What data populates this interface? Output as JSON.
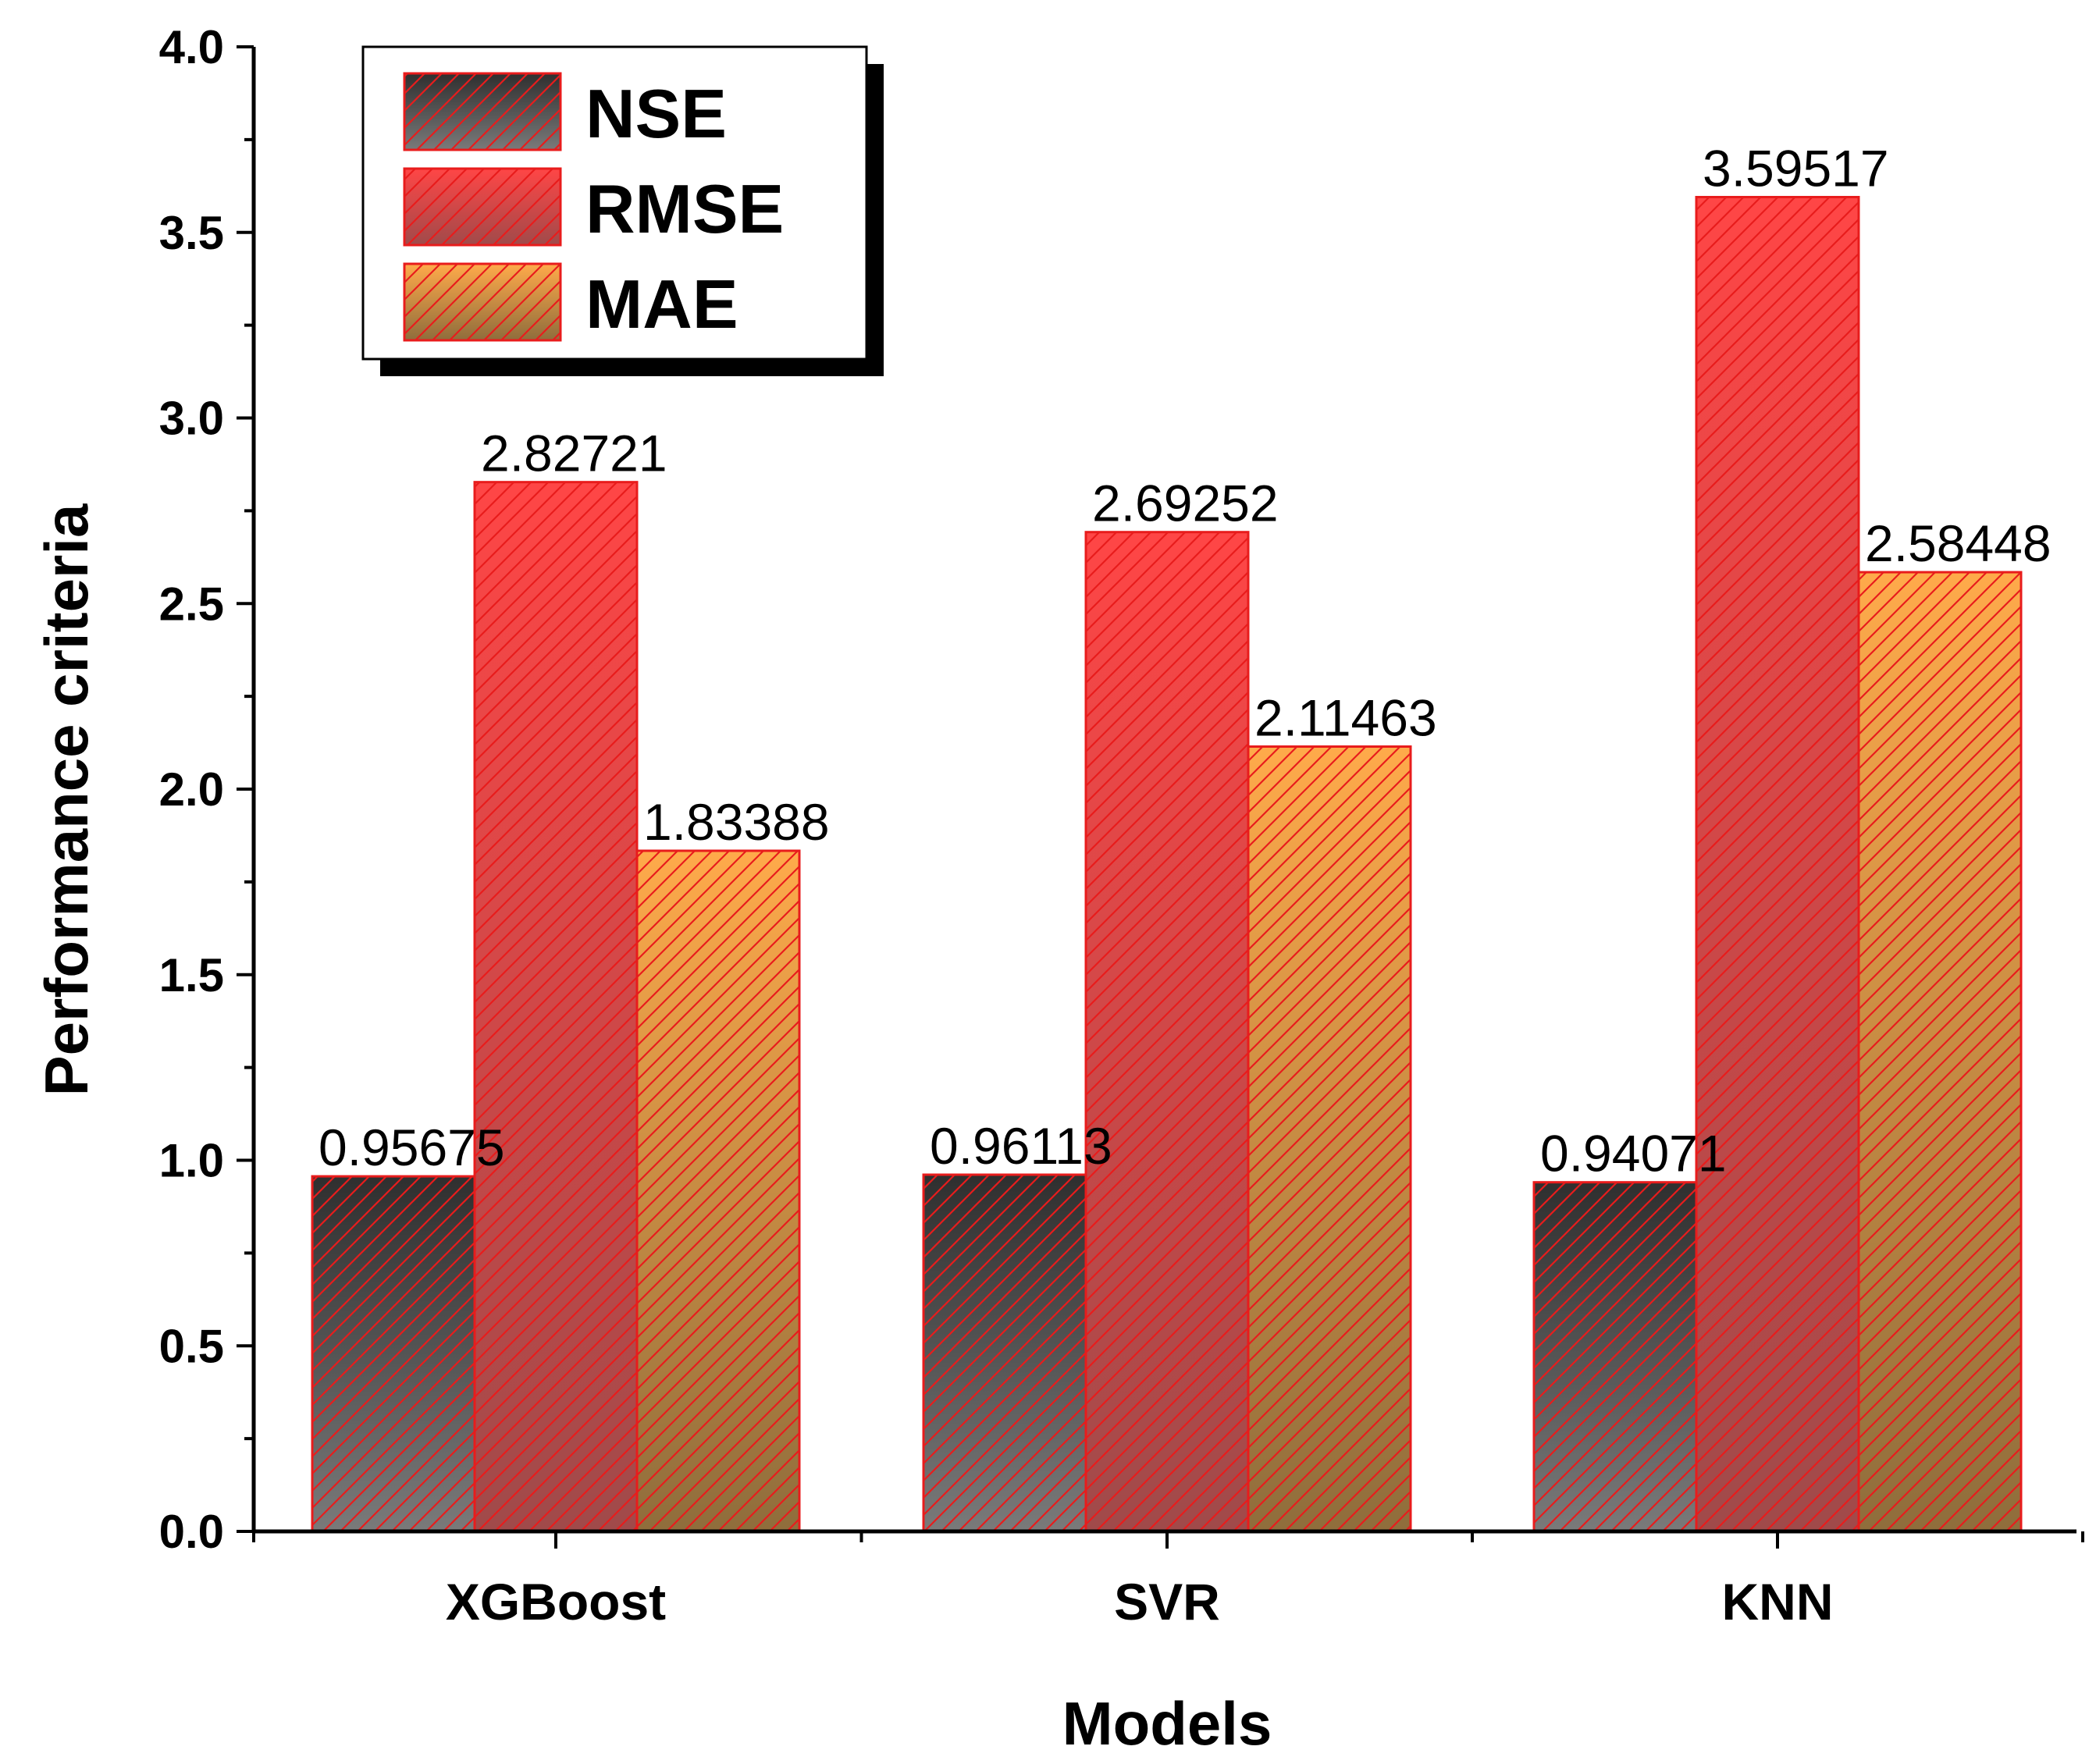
{
  "chart_data": {
    "type": "bar",
    "title": "",
    "xlabel": "Models",
    "ylabel": "Performance criteria",
    "categories": [
      "XGBoost",
      "SVR",
      "KNN"
    ],
    "ylim": [
      0.0,
      4.0
    ],
    "yticks": [
      "0.0",
      "0.5",
      "1.0",
      "1.5",
      "2.0",
      "2.5",
      "3.0",
      "3.5",
      "4.0"
    ],
    "grid": false,
    "legend_position": "top-left",
    "series": [
      {
        "name": "NSE",
        "values": [
          0.95675,
          0.96113,
          0.94071
        ],
        "labels": [
          "0.95675",
          "0.96113",
          "0.94071"
        ],
        "color_top": "#2f2f2f",
        "color_bottom": "#7a7a7a"
      },
      {
        "name": "RMSE",
        "values": [
          2.82721,
          2.69252,
          3.59517
        ],
        "labels": [
          "2.82721",
          "2.69252",
          "3.59517"
        ],
        "color_top": "#ff4646",
        "color_bottom": "#a04a4a"
      },
      {
        "name": "MAE",
        "values": [
          1.83388,
          2.11463,
          2.58448
        ],
        "labels": [
          "1.83388",
          "2.11463",
          "2.58448"
        ],
        "color_top": "#ffaa4a",
        "color_bottom": "#8f6d3c"
      }
    ],
    "border_color": "#e81c1c",
    "hatch_color": "#e81c1c"
  }
}
